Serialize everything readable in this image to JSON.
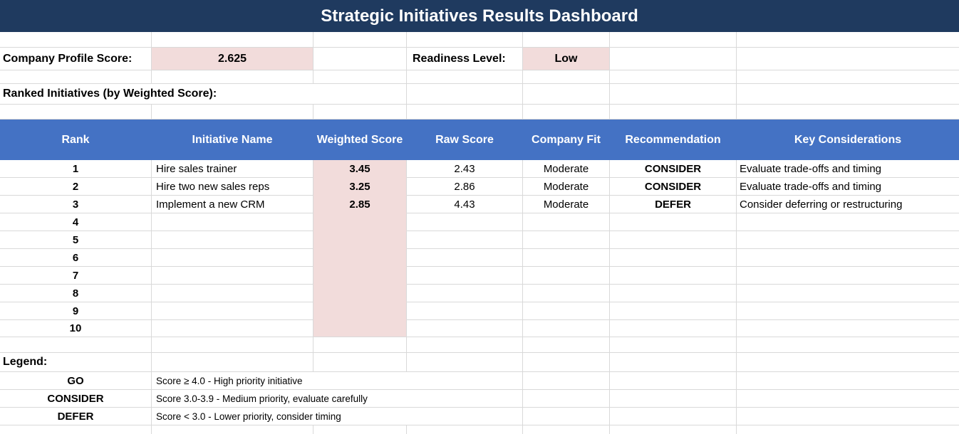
{
  "title": "Strategic Initiatives Results Dashboard",
  "summary": {
    "profile_label": "Company Profile Score:",
    "profile_value": "2.625",
    "readiness_label": "Readiness Level:",
    "readiness_value": "Low"
  },
  "section_heading": "Ranked Initiatives (by Weighted Score):",
  "table": {
    "headers": [
      "Rank",
      "Initiative Name",
      "Weighted Score",
      "Raw Score",
      "Company Fit",
      "Recommendation",
      "Key Considerations"
    ],
    "rows": [
      {
        "rank": "1",
        "name": "Hire sales trainer",
        "weighted": "3.45",
        "raw": "2.43",
        "fit": "Moderate",
        "rec": "CONSIDER",
        "notes": "Evaluate trade-offs and timing"
      },
      {
        "rank": "2",
        "name": "Hire two new sales reps",
        "weighted": "3.25",
        "raw": "2.86",
        "fit": "Moderate",
        "rec": "CONSIDER",
        "notes": "Evaluate trade-offs and timing"
      },
      {
        "rank": "3",
        "name": "Implement a new CRM",
        "weighted": "2.85",
        "raw": "4.43",
        "fit": "Moderate",
        "rec": "DEFER",
        "notes": "Consider deferring or restructuring"
      },
      {
        "rank": "4",
        "name": "",
        "weighted": "",
        "raw": "",
        "fit": "",
        "rec": "",
        "notes": ""
      },
      {
        "rank": "5",
        "name": "",
        "weighted": "",
        "raw": "",
        "fit": "",
        "rec": "",
        "notes": ""
      },
      {
        "rank": "6",
        "name": "",
        "weighted": "",
        "raw": "",
        "fit": "",
        "rec": "",
        "notes": ""
      },
      {
        "rank": "7",
        "name": "",
        "weighted": "",
        "raw": "",
        "fit": "",
        "rec": "",
        "notes": ""
      },
      {
        "rank": "8",
        "name": "",
        "weighted": "",
        "raw": "",
        "fit": "",
        "rec": "",
        "notes": ""
      },
      {
        "rank": "9",
        "name": "",
        "weighted": "",
        "raw": "",
        "fit": "",
        "rec": "",
        "notes": ""
      },
      {
        "rank": "10",
        "name": "",
        "weighted": "",
        "raw": "",
        "fit": "",
        "rec": "",
        "notes": ""
      }
    ]
  },
  "legend": {
    "heading": "Legend:",
    "items": [
      {
        "label": "GO",
        "desc": "Score ≥ 4.0 - High priority initiative"
      },
      {
        "label": "CONSIDER",
        "desc": "Score 3.0-3.9 - Medium priority, evaluate carefully"
      },
      {
        "label": "DEFER",
        "desc": "Score < 3.0 - Lower priority, consider timing"
      }
    ]
  },
  "colors": {
    "title_bar": "#1F3A5F",
    "table_header": "#4472C4",
    "highlight": "#F2DCDB",
    "gridline": "#D9D9D9"
  }
}
